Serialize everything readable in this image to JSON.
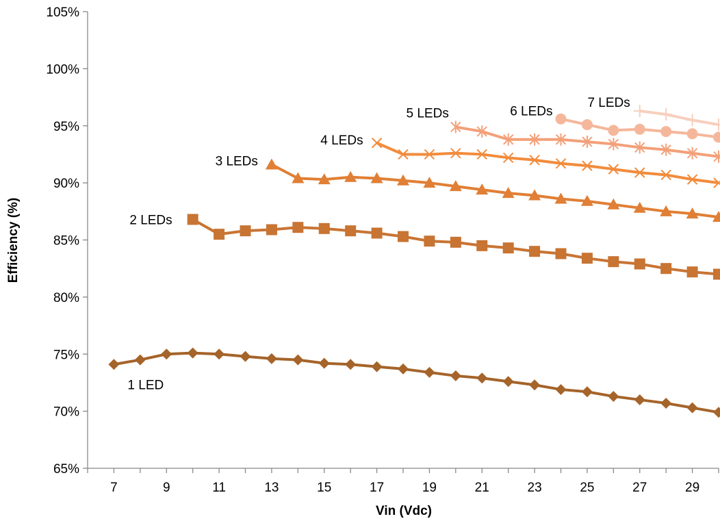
{
  "chart_data": {
    "type": "line",
    "title": "",
    "xlabel": "Vin (Vdc)",
    "ylabel": "Efficiency (%)",
    "xlim": [
      6,
      30
    ],
    "ylim": [
      65,
      105
    ],
    "x_ticks": [
      7,
      9,
      11,
      13,
      15,
      17,
      19,
      21,
      23,
      25,
      27,
      29
    ],
    "y_ticks": [
      {
        "value": 65,
        "label": "65%"
      },
      {
        "value": 70,
        "label": "70%"
      },
      {
        "value": 75,
        "label": "75%"
      },
      {
        "value": 80,
        "label": "80%"
      },
      {
        "value": 85,
        "label": "85%"
      },
      {
        "value": 90,
        "label": "90%"
      },
      {
        "value": 95,
        "label": "95%"
      },
      {
        "value": 100,
        "label": "100%"
      },
      {
        "value": 105,
        "label": "105%"
      }
    ],
    "grid": false,
    "legend": "none (series labels placed on chart)",
    "series": [
      {
        "name": "1 LED",
        "color": "#a5642a",
        "marker": "diamond",
        "x": [
          7,
          8,
          9,
          10,
          11,
          12,
          13,
          14,
          15,
          16,
          17,
          18,
          19,
          20,
          21,
          22,
          23,
          24,
          25,
          26,
          27,
          28,
          29,
          30
        ],
        "y": [
          74.1,
          74.5,
          75.0,
          75.1,
          75.0,
          74.8,
          74.6,
          74.5,
          74.2,
          74.1,
          73.9,
          73.7,
          73.4,
          73.1,
          72.9,
          72.6,
          72.3,
          71.9,
          71.7,
          71.3,
          71.0,
          70.7,
          70.3,
          69.9
        ]
      },
      {
        "name": "2 LEDs",
        "color": "#c87433",
        "marker": "square",
        "x": [
          10,
          11,
          12,
          13,
          14,
          15,
          16,
          17,
          18,
          19,
          20,
          21,
          22,
          23,
          24,
          25,
          26,
          27,
          28,
          29,
          30
        ],
        "y": [
          86.8,
          85.5,
          85.8,
          85.9,
          86.1,
          86.0,
          85.8,
          85.6,
          85.3,
          84.9,
          84.8,
          84.5,
          84.3,
          84.0,
          83.8,
          83.4,
          83.1,
          82.9,
          82.5,
          82.2,
          82.0
        ]
      },
      {
        "name": "3 LEDs",
        "color": "#e07f35",
        "marker": "triangle",
        "x": [
          13,
          14,
          15,
          16,
          17,
          18,
          19,
          20,
          21,
          22,
          23,
          24,
          25,
          26,
          27,
          28,
          29,
          30
        ],
        "y": [
          91.6,
          90.4,
          90.3,
          90.5,
          90.4,
          90.2,
          90.0,
          89.7,
          89.4,
          89.1,
          88.9,
          88.6,
          88.4,
          88.1,
          87.8,
          87.5,
          87.3,
          87.0
        ]
      },
      {
        "name": "4 LEDs",
        "color": "#f28b3c",
        "marker": "x",
        "x": [
          17,
          18,
          19,
          20,
          21,
          22,
          23,
          24,
          25,
          26,
          27,
          28,
          29,
          30
        ],
        "y": [
          93.5,
          92.5,
          92.5,
          92.6,
          92.5,
          92.2,
          92.0,
          91.7,
          91.5,
          91.2,
          90.9,
          90.7,
          90.3,
          90.0
        ]
      },
      {
        "name": "5 LEDs",
        "color": "#f3a079",
        "marker": "asterisk",
        "x": [
          20,
          21,
          22,
          23,
          24,
          25,
          26,
          27,
          28,
          29,
          30
        ],
        "y": [
          94.9,
          94.5,
          93.8,
          93.8,
          93.8,
          93.6,
          93.4,
          93.1,
          92.9,
          92.6,
          92.3
        ]
      },
      {
        "name": "6 LEDs",
        "color": "#f5b79b",
        "marker": "circle",
        "x": [
          24,
          25,
          26,
          27,
          28,
          29,
          30
        ],
        "y": [
          95.6,
          95.1,
          94.6,
          94.7,
          94.5,
          94.3,
          94.0
        ]
      },
      {
        "name": "7 LEDs",
        "color": "#f7cfbd",
        "marker": "plus",
        "x": [
          27,
          28,
          29,
          30
        ],
        "y": [
          96.3,
          96.0,
          95.5,
          95.1
        ]
      }
    ]
  }
}
